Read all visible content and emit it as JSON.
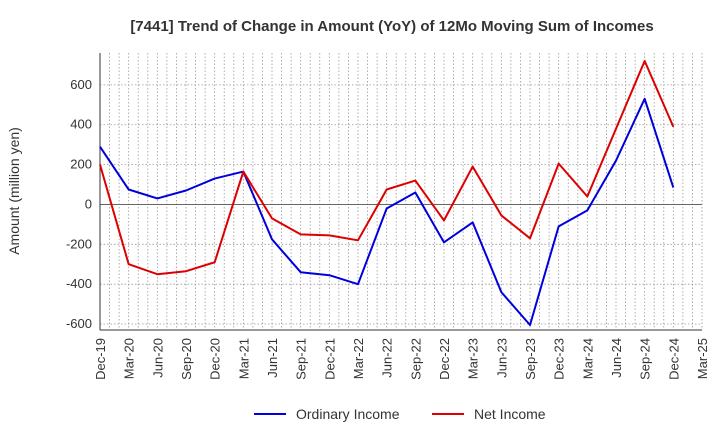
{
  "chart_data": {
    "type": "line",
    "title": "[7441]  Trend of Change in Amount (YoY) of 12Mo Moving Sum of Incomes",
    "xlabel": "",
    "ylabel": "Amount (million yen)",
    "categories": [
      "Dec-19",
      "Mar-20",
      "Jun-20",
      "Sep-20",
      "Dec-20",
      "Mar-21",
      "Jun-21",
      "Sep-21",
      "Dec-21",
      "Mar-22",
      "Jun-22",
      "Sep-22",
      "Dec-22",
      "Mar-23",
      "Jun-23",
      "Sep-23",
      "Dec-23",
      "Mar-24",
      "Jun-24",
      "Sep-24",
      "Dec-24",
      "Mar-25"
    ],
    "ylim": [
      -630,
      760
    ],
    "yticks": [
      -600,
      -400,
      -200,
      0,
      200,
      400,
      600
    ],
    "series": [
      {
        "name": "Ordinary Income",
        "color": "#0000dd",
        "values": [
          290,
          75,
          30,
          70,
          130,
          165,
          -175,
          -340,
          -355,
          -400,
          -20,
          60,
          -190,
          -90,
          -440,
          -605,
          -110,
          -30,
          220,
          530,
          85,
          null
        ]
      },
      {
        "name": "Net Income",
        "color": "#dd0000",
        "values": [
          200,
          -300,
          -350,
          -335,
          -290,
          165,
          -70,
          -150,
          -155,
          -180,
          75,
          120,
          -80,
          190,
          -55,
          -170,
          205,
          40,
          380,
          720,
          390,
          null
        ]
      }
    ],
    "grid": true,
    "legend": "bottom-center"
  }
}
